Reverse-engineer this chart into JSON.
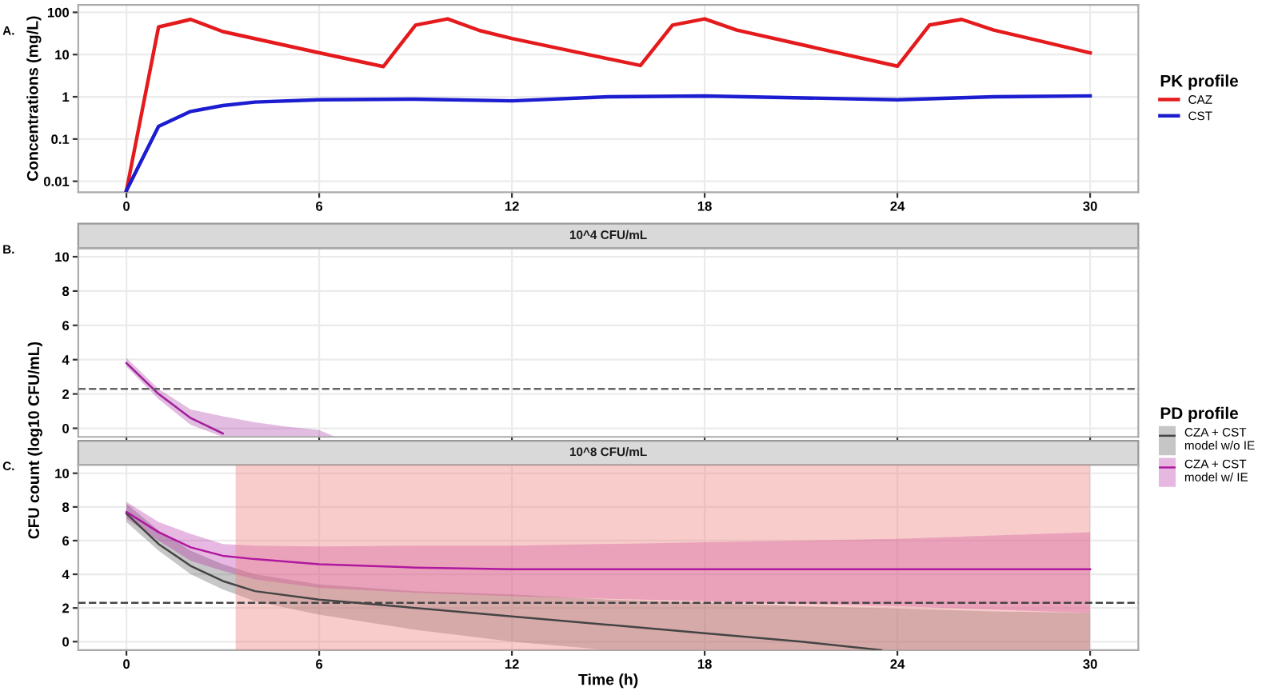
{
  "chart_data": [
    {
      "type": "line",
      "ylabel": "Concentrations (mg/L)",
      "legend_title": "PK profile",
      "legend": "right",
      "log": "y",
      "grid": true,
      "xlim": [
        -1.5,
        31.5
      ],
      "xticks": [
        0,
        6,
        12,
        18,
        24,
        30
      ],
      "ylim": [
        0.0055,
        150
      ],
      "yticks": [
        0.01,
        0.1,
        1,
        10,
        100
      ],
      "tick_labels": true,
      "annotations": [
        "A."
      ],
      "series": [
        {
          "name": "CAZ",
          "color": "#e41a1c",
          "x": [
            0,
            1,
            2,
            3,
            6,
            8,
            9,
            10,
            11,
            12,
            16,
            17,
            18,
            19,
            24,
            25,
            26,
            27,
            30
          ],
          "values": [
            0.006,
            45,
            68,
            35,
            11,
            5.2,
            50,
            70,
            37,
            24,
            5.5,
            50,
            70,
            38,
            5.3,
            50,
            68,
            38,
            11
          ]
        },
        {
          "name": "CST",
          "color": "#1c1cd0",
          "x": [
            0,
            1,
            2,
            3,
            4,
            6,
            9,
            12,
            15,
            18,
            24,
            27,
            30
          ],
          "values": [
            0.006,
            0.2,
            0.45,
            0.62,
            0.75,
            0.85,
            0.88,
            0.8,
            1.0,
            1.05,
            0.85,
            1.0,
            1.05
          ]
        }
      ]
    },
    {
      "type": "line",
      "title": "10^4 CFU/mL",
      "grid": true,
      "xlim": [
        -1.5,
        31.5
      ],
      "xticks": [
        0,
        6,
        12,
        18,
        24,
        30
      ],
      "ylim": [
        -0.5,
        10.5
      ],
      "yticks": [
        0,
        2,
        4,
        6,
        8,
        10
      ],
      "tick_labels": "y",
      "annotations": [
        "B."
      ],
      "ref_lines": [
        {
          "axis": "y",
          "value": 2.3,
          "color": "#666666",
          "line_style": "dashed"
        }
      ],
      "series": [
        {
          "color": "#a0209a",
          "x": [
            0,
            1,
            2,
            3,
            4,
            5,
            6,
            6.5
          ],
          "values": [
            3.8,
            2.0,
            0.6,
            -0.3,
            null,
            null,
            null,
            null
          ],
          "lower": [
            3.6,
            1.7,
            0.2,
            -0.5,
            -0.5,
            -0.5,
            -0.5,
            -0.5
          ],
          "upper": [
            4.1,
            2.3,
            1.1,
            0.7,
            0.35,
            0.1,
            -0.1,
            -0.5
          ]
        }
      ]
    },
    {
      "type": "line",
      "title": "10^8 CFU/mL",
      "xlabel": "Time (h)",
      "ylabel": "CFU count (log10 CFU/mL)",
      "legend_title": "PD profile",
      "legend": "right",
      "grid": true,
      "xlim": [
        -1.5,
        31.5
      ],
      "xticks": [
        0,
        6,
        12,
        18,
        24,
        30
      ],
      "ylim": [
        -0.5,
        10.5
      ],
      "yticks": [
        0,
        2,
        4,
        6,
        8,
        10
      ],
      "annotations": [
        "C."
      ],
      "ref_lines": [
        {
          "axis": "y",
          "value": 2.3,
          "color": "#444444",
          "line_style": "dashed"
        }
      ],
      "bands": [
        {
          "axis": "x",
          "from": 3.4,
          "to": 30,
          "color": "#f08080"
        }
      ],
      "series": [
        {
          "name": "CZA + CST\nmodel w/o IE",
          "color": "#444444",
          "x": [
            0,
            1,
            2,
            3,
            4,
            6,
            9,
            12,
            15,
            18,
            21,
            23.5,
            27,
            30
          ],
          "values": [
            7.6,
            5.8,
            4.5,
            3.6,
            3.0,
            2.5,
            2.0,
            1.5,
            1.0,
            0.5,
            0.0,
            -0.5,
            null,
            null
          ],
          "lower": [
            7.1,
            5.4,
            4.0,
            3.1,
            2.4,
            1.6,
            0.7,
            0.0,
            -0.5,
            -0.5,
            -0.5,
            -0.5,
            -0.5,
            -0.5
          ],
          "upper": [
            8.2,
            6.6,
            5.4,
            4.6,
            4.0,
            3.4,
            3.0,
            2.8,
            2.5,
            2.3,
            2.1,
            2.0,
            1.8,
            1.7
          ]
        },
        {
          "name": "CZA + CST\nmodel w/ IE",
          "color": "#b0189f",
          "x": [
            0,
            1,
            2,
            3,
            4,
            6,
            9,
            12,
            18,
            24,
            30
          ],
          "values": [
            7.7,
            6.5,
            5.6,
            5.1,
            4.9,
            4.6,
            4.4,
            4.3,
            4.3,
            4.3,
            4.3
          ],
          "lower": [
            7.3,
            6.0,
            4.8,
            4.2,
            3.7,
            3.2,
            2.9,
            2.7,
            2.4,
            2.1,
            1.7
          ],
          "upper": [
            8.3,
            7.1,
            6.4,
            5.8,
            5.7,
            5.65,
            5.7,
            5.7,
            5.9,
            6.1,
            6.5
          ]
        }
      ]
    }
  ]
}
